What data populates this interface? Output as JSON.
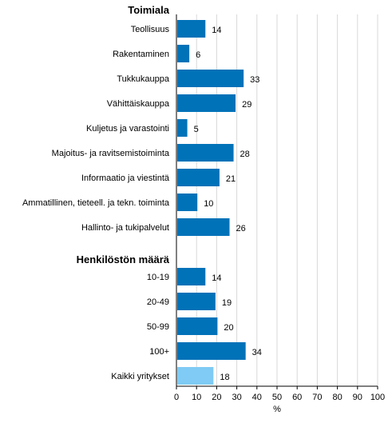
{
  "chart_data": {
    "type": "bar",
    "orientation": "horizontal",
    "xlabel": "%",
    "xlim": [
      0,
      100
    ],
    "x_ticks": [
      "0",
      "10",
      "20",
      "30",
      "40",
      "50",
      "60",
      "70",
      "80",
      "90",
      "100"
    ],
    "grid": true,
    "groups": [
      {
        "label": "Toimiala",
        "categories": [
          "Teollisuus",
          "Rakentaminen",
          "Tukkukauppa",
          "Vähittäiskauppa",
          "Kuljetus ja varastointi",
          "Majoitus- ja ravitsemistoiminta",
          "Informaatio ja viestintä",
          "Ammatillinen, tieteell. ja tekn. toiminta",
          "Hallinto- ja tukipalvelut"
        ],
        "values": [
          14,
          6,
          33,
          29,
          5,
          28,
          21,
          10,
          26
        ],
        "value_labels": [
          "14",
          "6",
          "33",
          "29",
          "5",
          "28",
          "21",
          "10",
          "26"
        ]
      },
      {
        "label": "Henkilöstön määrä",
        "categories": [
          "10-19",
          "20-49",
          "50-99",
          "100+"
        ],
        "values": [
          14,
          19,
          20,
          34
        ],
        "value_labels": [
          "14",
          "19",
          "20",
          "34"
        ]
      },
      {
        "label": "",
        "categories": [
          "Kaikki yritykset"
        ],
        "values": [
          18
        ],
        "value_labels": [
          "18"
        ],
        "highlight": true
      }
    ],
    "colors": {
      "bar": "#0072b8",
      "highlight_bar": "#7fcbf5",
      "grid": "#d9d9d9",
      "axis": "#000000"
    }
  }
}
